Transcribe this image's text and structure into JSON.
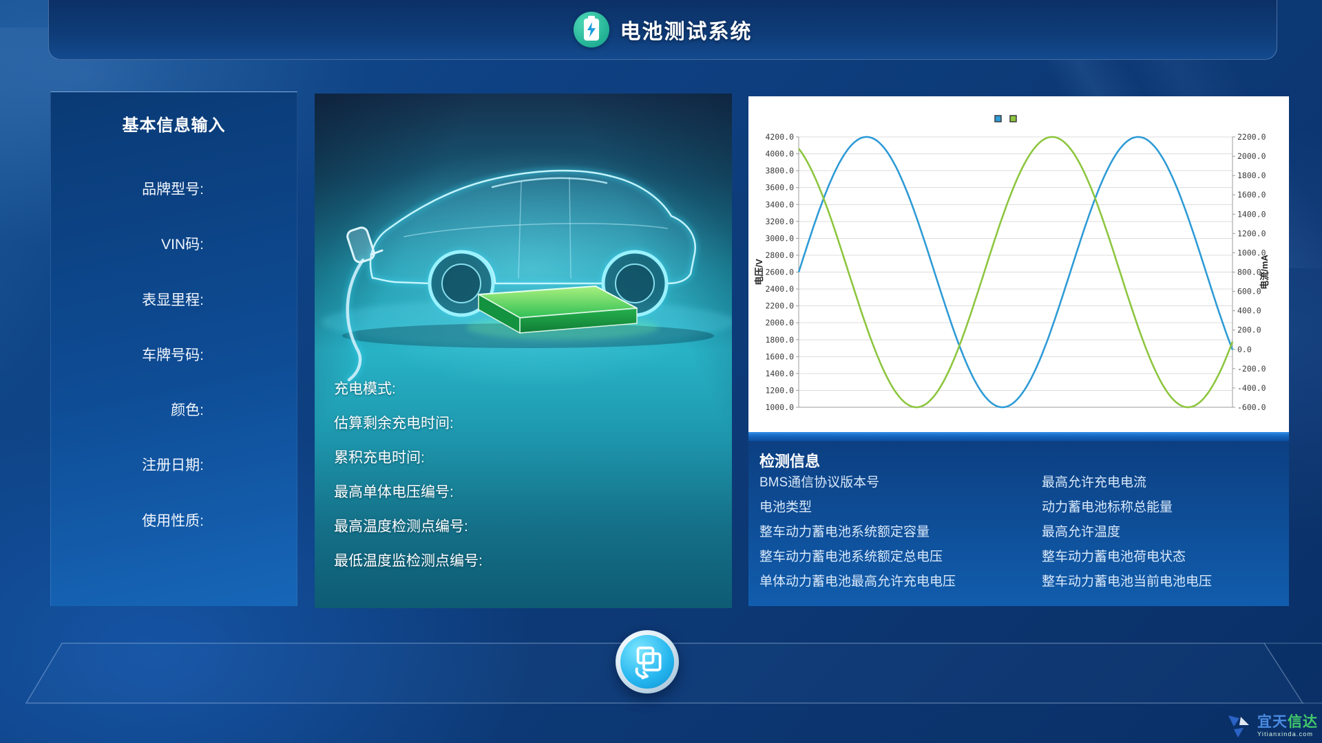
{
  "header": {
    "title": "电池测试系统",
    "icon": "battery-icon"
  },
  "basic_info": {
    "title": "基本信息输入",
    "fields": [
      "品牌型号:",
      "VIN码:",
      "表显里程:",
      "车牌号码:",
      "颜色:",
      "注册日期:",
      "使用性质:"
    ]
  },
  "vehicle_panel": {
    "fields": [
      "充电模式:",
      "估算剩余充电时间:",
      "累积充电时间:",
      "最高单体电压编号:",
      "最高温度检测点编号:",
      "最低温度监检测点编号:"
    ]
  },
  "chart_data": {
    "type": "line",
    "title": "",
    "grid": true,
    "legend_position": "top-center",
    "y_left": {
      "label": "电压/V",
      "min": 1000,
      "max": 4200,
      "ticks": [
        4200,
        4000,
        3800,
        3600,
        3400,
        3200,
        3000,
        2800,
        2600,
        2400,
        2200,
        2000,
        1800,
        1600,
        1400,
        1200,
        1000
      ],
      "tick_format": "0.1f"
    },
    "y_right": {
      "label": "电流/mA",
      "min": -600,
      "max": 2200,
      "ticks": [
        2200,
        2000,
        1800,
        1600,
        1400,
        1200,
        1000,
        800,
        600,
        400,
        200,
        0,
        -200,
        -400,
        -600
      ],
      "tick_format": "0.1f"
    },
    "x": {
      "min": 0,
      "max": 1,
      "ticks_visible": false
    },
    "series": [
      {
        "name": "电压",
        "color": "#2e9bd6",
        "axis": "left",
        "waveform": {
          "shape": "sine",
          "midline": 2600,
          "amplitude": 1600,
          "period_frac": 0.626,
          "phase_deg": 0
        },
        "endpoints": {
          "start_value": 2600,
          "end_value": 1680
        }
      },
      {
        "name": "电流",
        "color": "#8dc63f",
        "axis": "right",
        "waveform": {
          "shape": "sine",
          "midline": 800,
          "amplitude": 1400,
          "period_frac": 0.626,
          "phase_deg": 114
        },
        "endpoints": {
          "start_value": 2070,
          "end_value": 90
        }
      }
    ]
  },
  "detection_info": {
    "title": "检测信息",
    "left_column": [
      "BMS通信协议版本号",
      "电池类型",
      "整车动力蓄电池系统额定容量",
      "整车动力蓄电池系统额定总电压",
      "单体动力蓄电池最高允许充电电压"
    ],
    "right_column": [
      "最高允许充电电流",
      "动力蓄电池标称总能量",
      "最高允许温度",
      "整车动力蓄电池荷电状态",
      "整车动力蓄电池当前电池电压"
    ]
  },
  "watermark": {
    "brand_blue": "宜天",
    "brand_green": "信达",
    "domain": "Yitianxinda.com"
  },
  "colors": {
    "accent_teal": "#2cc3a5",
    "curve_blue": "#2e9bd6",
    "curve_green": "#8dc63f",
    "brand_blue": "#4a8ae0",
    "brand_green": "#43c96a"
  }
}
